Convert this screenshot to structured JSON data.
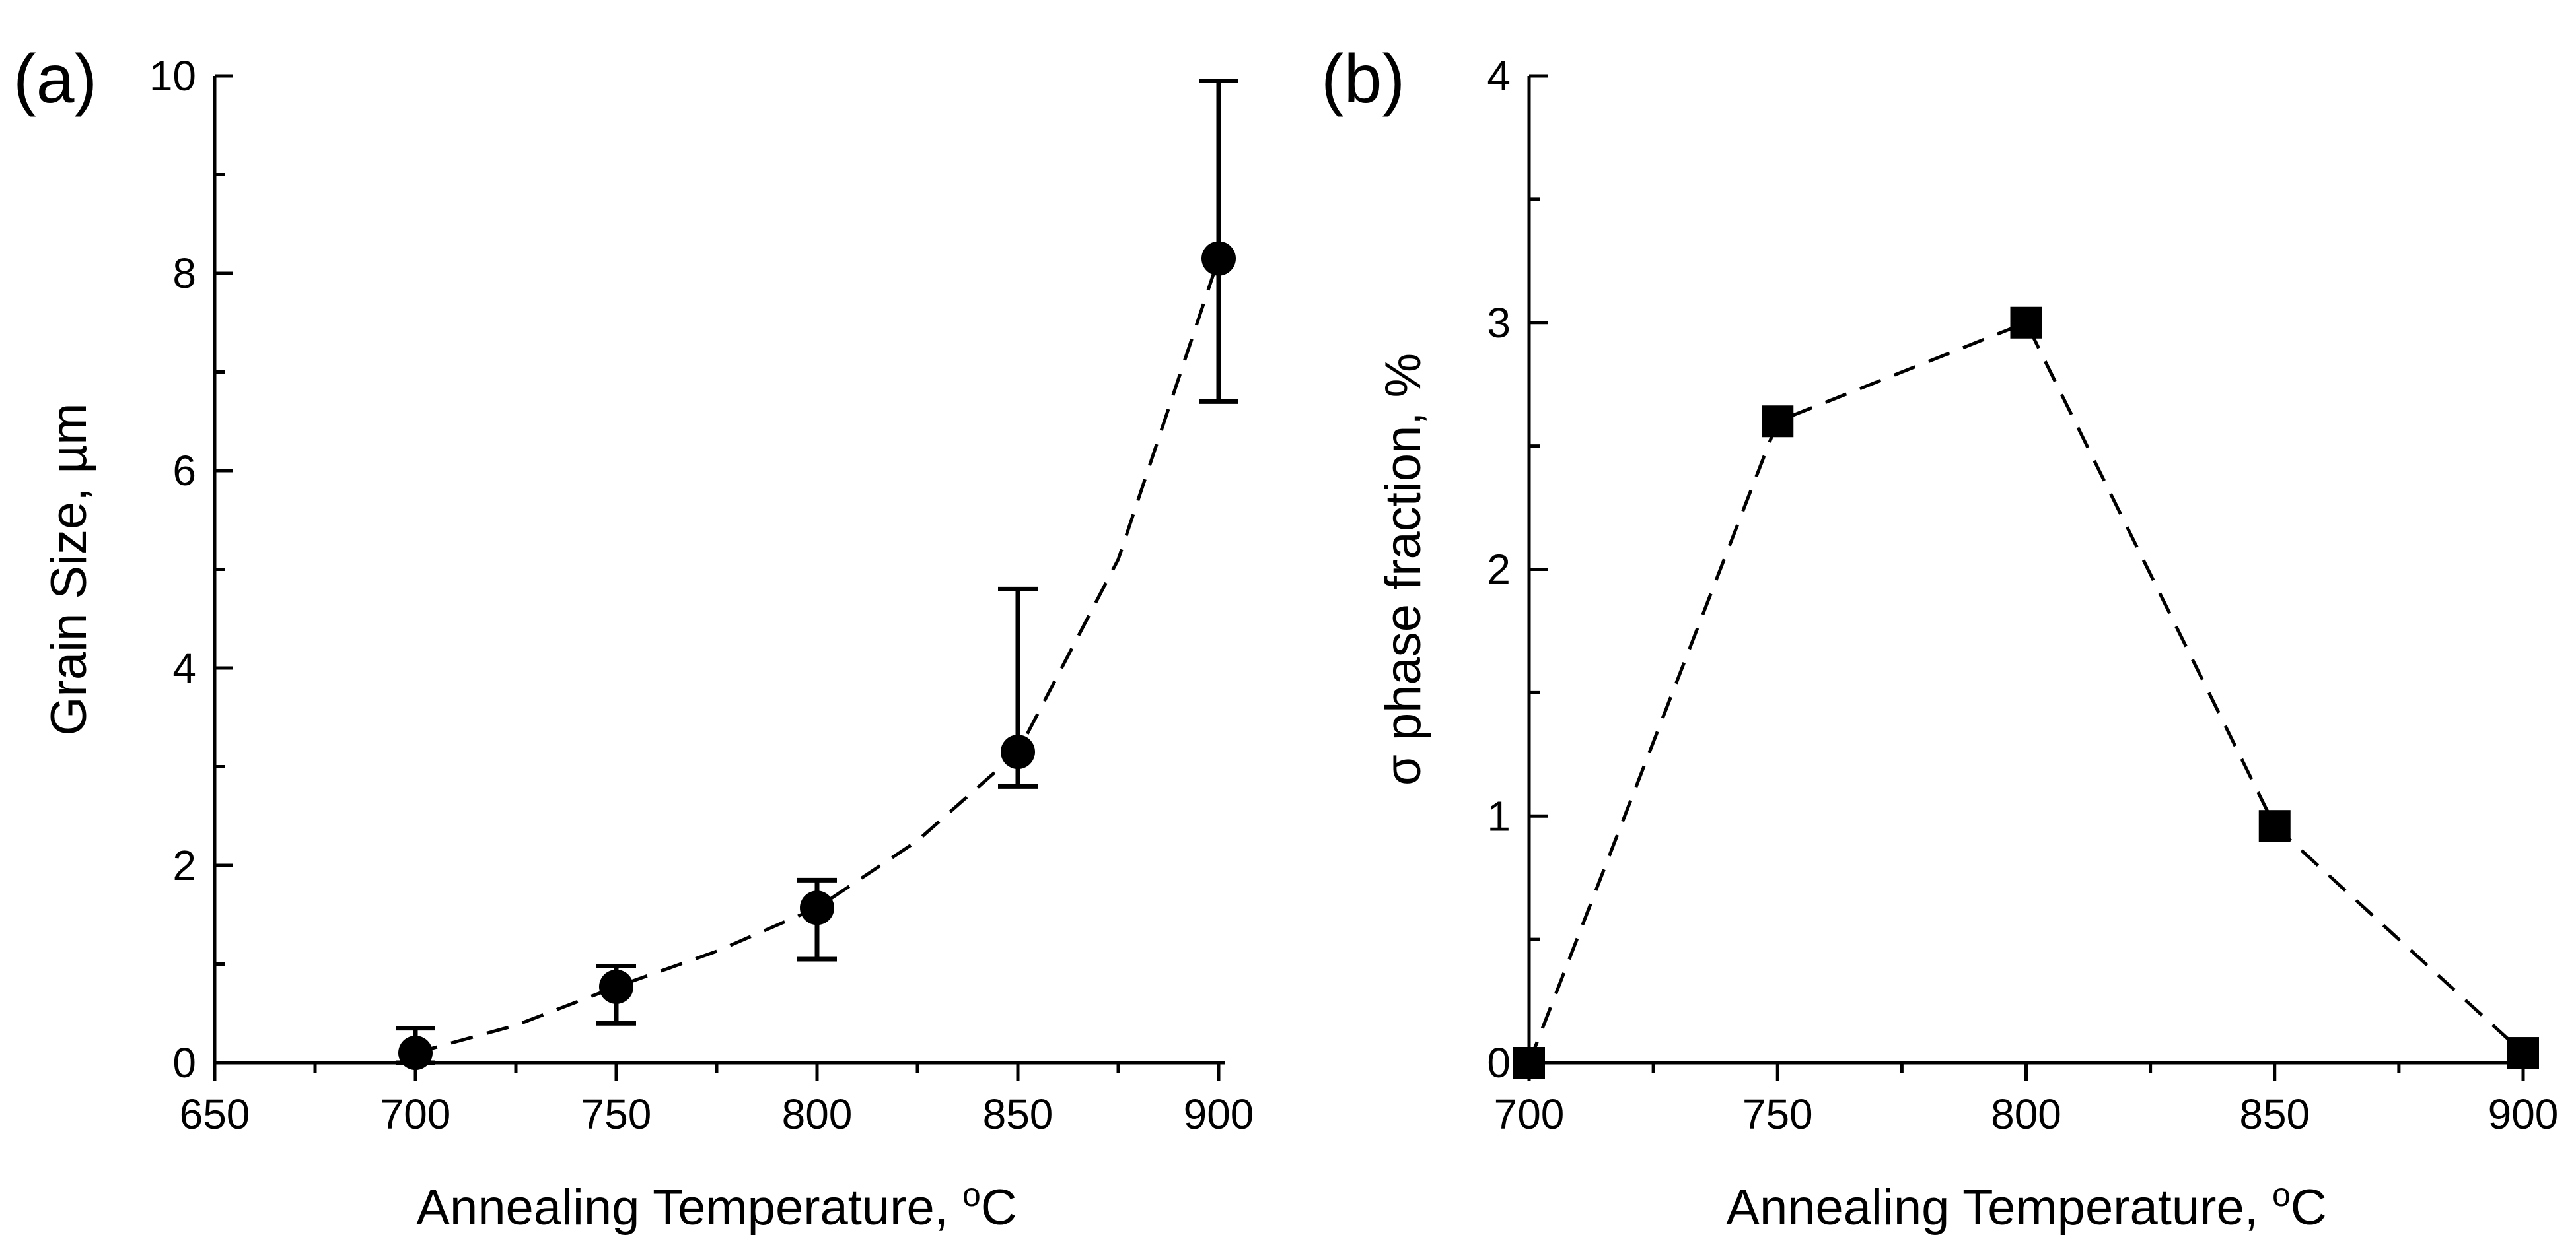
{
  "chart_data": [
    {
      "panel_label": "(a)",
      "type": "scatter",
      "series": [
        {
          "name": "Grain Size",
          "marker": "circle",
          "x": [
            700,
            750,
            800,
            850,
            900
          ],
          "y": [
            0.1,
            0.77,
            1.57,
            3.15,
            8.15
          ],
          "err_low": [
            0.0,
            0.4,
            1.05,
            2.8,
            6.7
          ],
          "err_high": [
            0.35,
            0.98,
            1.85,
            4.8,
            9.95
          ]
        }
      ],
      "trend": {
        "style": "dashed",
        "x": [
          700,
          725,
          750,
          775,
          800,
          825,
          850,
          875,
          900
        ],
        "y": [
          0.1,
          0.38,
          0.77,
          1.13,
          1.57,
          2.25,
          3.15,
          5.1,
          8.15
        ]
      },
      "xlabel_parts": [
        "Annealing Temperature, ",
        "o",
        "C"
      ],
      "ylabel": "Grain Size, µm",
      "xlim": [
        650,
        900
      ],
      "ylim": [
        0,
        10
      ],
      "xticks": [
        650,
        700,
        750,
        800,
        850,
        900
      ],
      "xtick_labels": [
        "650",
        "700",
        "750",
        "800",
        "850",
        "900"
      ],
      "yticks": [
        0,
        2,
        4,
        6,
        8,
        10
      ],
      "ytick_labels": [
        "0",
        "2",
        "4",
        "6",
        "8",
        "10"
      ],
      "grid": false
    },
    {
      "panel_label": "(b)",
      "type": "line",
      "series": [
        {
          "name": "σ phase fraction",
          "marker": "square",
          "style": "dashed",
          "x": [
            700,
            750,
            800,
            850,
            900
          ],
          "y": [
            0.0,
            2.6,
            3.0,
            0.96,
            0.04
          ]
        }
      ],
      "xlabel_parts": [
        "Annealing Temperature, ",
        "o",
        "C"
      ],
      "ylabel": "σ phase fraction, %",
      "xlim": [
        700,
        900
      ],
      "ylim": [
        0,
        4
      ],
      "xticks": [
        700,
        750,
        800,
        850,
        900
      ],
      "xtick_labels": [
        "700",
        "750",
        "800",
        "850",
        "900"
      ],
      "yticks": [
        0,
        1,
        2,
        3,
        4
      ],
      "ytick_labels": [
        "0",
        "1",
        "2",
        "3",
        "4"
      ],
      "grid": false
    }
  ]
}
